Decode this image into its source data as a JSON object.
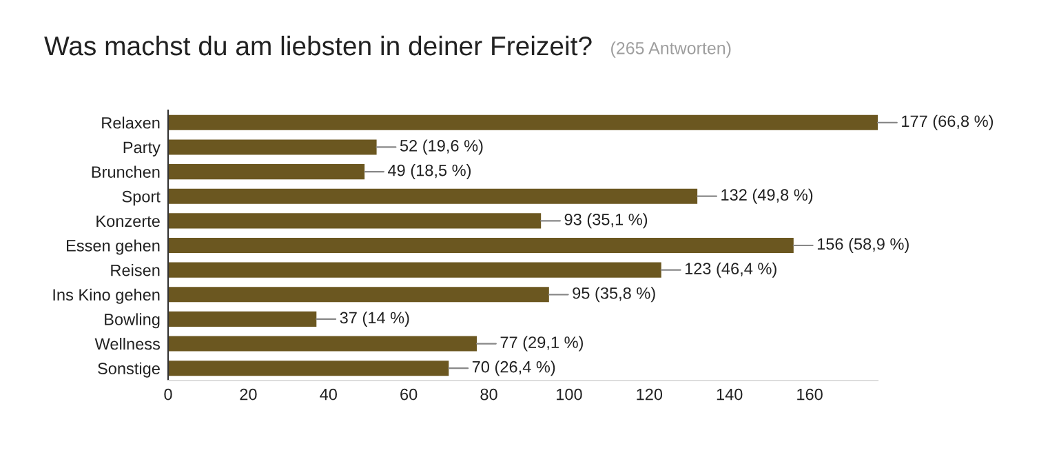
{
  "chart_data": {
    "type": "bar",
    "orientation": "horizontal",
    "title": "Was machst du am liebsten in deiner Freizeit?",
    "subtitle": "(265 Antworten)",
    "categories": [
      "Relaxen",
      "Party",
      "Brunchen",
      "Sport",
      "Konzerte",
      "Essen gehen",
      "Reisen",
      "Ins Kino gehen",
      "Bowling",
      "Wellness",
      "Sonstige"
    ],
    "values": [
      177,
      52,
      49,
      132,
      93,
      156,
      123,
      95,
      37,
      77,
      70
    ],
    "value_labels": [
      "177 (66,8 %)",
      "52 (19,6 %)",
      "49 (18,5 %)",
      "132 (49,8 %)",
      "93 (35,1 %)",
      "156 (58,9 %)",
      "123 (46,4 %)",
      "95 (35,8 %)",
      "37 (14 %)",
      "77 (29,1 %)",
      "70 (26,4 %)"
    ],
    "color": "#6b5720",
    "xlim": [
      0,
      177
    ],
    "xticks": [
      0,
      20,
      40,
      60,
      80,
      100,
      120,
      140,
      160
    ],
    "grid": false,
    "legend": false
  }
}
